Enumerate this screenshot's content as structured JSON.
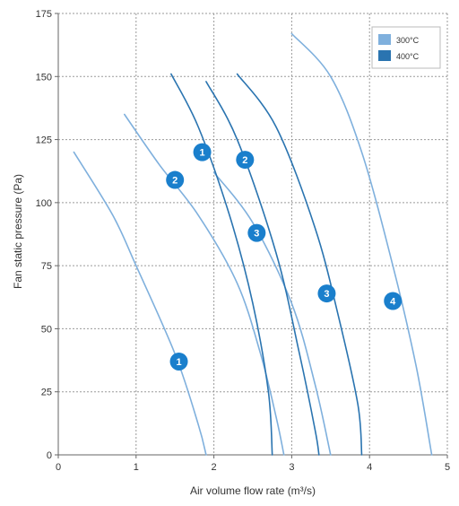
{
  "chart_data": {
    "type": "line",
    "xlabel": "Air volume flow rate (m³/s)",
    "ylabel": "Fan static pressure (Pa)",
    "xlim": [
      0,
      5
    ],
    "ylim": [
      0,
      175
    ],
    "x_ticks": [
      "0",
      "1",
      "2",
      "3",
      "4",
      "5"
    ],
    "y_ticks": [
      "0",
      "25",
      "50",
      "75",
      "100",
      "125",
      "150",
      "175"
    ],
    "grid": true,
    "legend_position": "top-right",
    "legend": [
      {
        "name": "300°C",
        "color": "#7fb0dd"
      },
      {
        "name": "400°C",
        "color": "#2a74b0"
      }
    ],
    "series": [
      {
        "group": "300°C",
        "label": "1",
        "color": "#7fb0dd",
        "points": [
          [
            0.2,
            120
          ],
          [
            0.7,
            95
          ],
          [
            1.0,
            75
          ],
          [
            1.5,
            40
          ],
          [
            1.8,
            12
          ],
          [
            1.9,
            0
          ]
        ],
        "label_at": [
          1.55,
          37
        ]
      },
      {
        "group": "300°C",
        "label": "2",
        "color": "#7fb0dd",
        "points": [
          [
            0.85,
            135
          ],
          [
            1.3,
            115
          ],
          [
            1.8,
            95
          ],
          [
            2.3,
            68
          ],
          [
            2.6,
            40
          ],
          [
            2.8,
            15
          ],
          [
            2.9,
            0
          ]
        ],
        "label_at": [
          1.5,
          109
        ]
      },
      {
        "group": "300°C",
        "label": "3",
        "color": "#7fb0dd",
        "points": [
          [
            2.0,
            112
          ],
          [
            2.5,
            92
          ],
          [
            3.0,
            60
          ],
          [
            3.3,
            28
          ],
          [
            3.5,
            0
          ]
        ],
        "label_at": [
          2.55,
          88
        ]
      },
      {
        "group": "300°C",
        "label": "4",
        "color": "#7fb0dd",
        "points": [
          [
            3.0,
            167
          ],
          [
            3.5,
            150
          ],
          [
            3.9,
            120
          ],
          [
            4.3,
            75
          ],
          [
            4.6,
            35
          ],
          [
            4.8,
            0
          ]
        ],
        "label_at": [
          4.3,
          61
        ]
      },
      {
        "group": "400°C",
        "label": "1",
        "color": "#2a74b0",
        "points": [
          [
            1.45,
            151
          ],
          [
            1.8,
            130
          ],
          [
            2.2,
            95
          ],
          [
            2.5,
            60
          ],
          [
            2.7,
            25
          ],
          [
            2.75,
            0
          ]
        ],
        "label_at": [
          1.85,
          120
        ]
      },
      {
        "group": "400°C",
        "label": "2",
        "color": "#2a74b0",
        "points": [
          [
            1.9,
            148
          ],
          [
            2.3,
            125
          ],
          [
            2.8,
            80
          ],
          [
            3.1,
            40
          ],
          [
            3.3,
            10
          ],
          [
            3.35,
            0
          ]
        ],
        "label_at": [
          2.4,
          117
        ]
      },
      {
        "group": "400°C",
        "label": "3",
        "color": "#2a74b0",
        "points": [
          [
            2.3,
            151
          ],
          [
            2.8,
            130
          ],
          [
            3.3,
            90
          ],
          [
            3.6,
            55
          ],
          [
            3.85,
            20
          ],
          [
            3.9,
            0
          ]
        ],
        "label_at": [
          3.45,
          64
        ]
      }
    ]
  },
  "badge_color": "#1a7fcc",
  "grid_color": "#9a9a9a",
  "axis_color": "#666666"
}
